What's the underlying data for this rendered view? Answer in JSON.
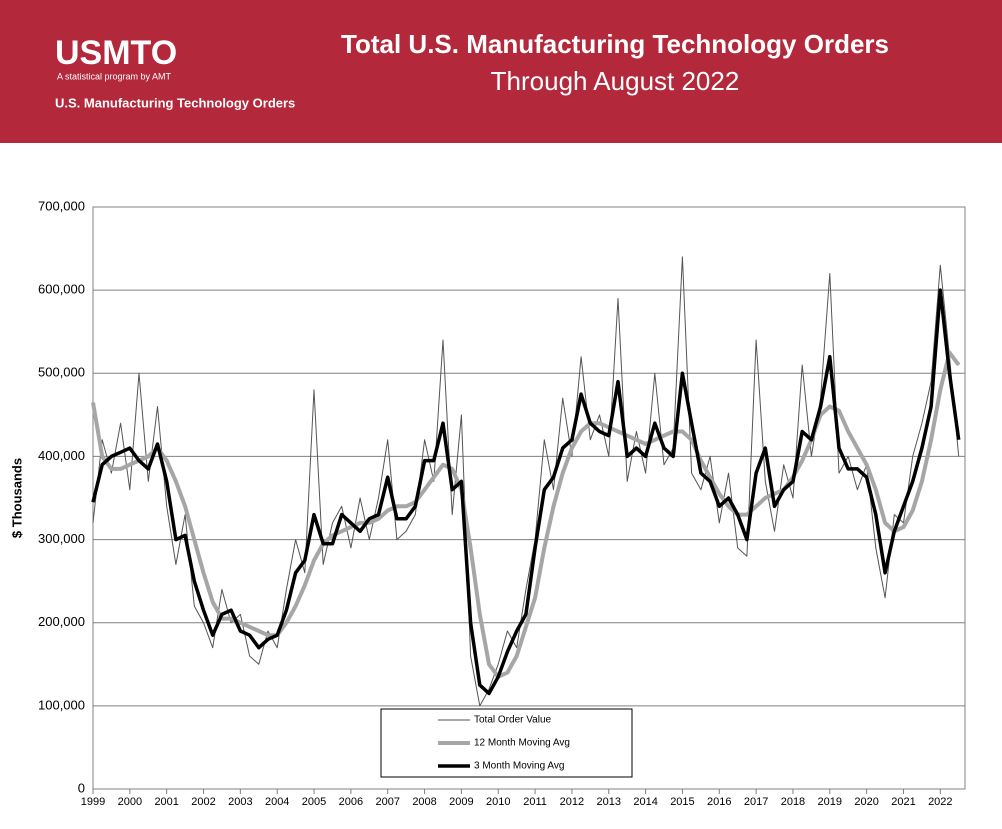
{
  "header": {
    "logo": "USMTO",
    "logo_tagline": "A statistical program by AMT",
    "program": "U.S. Manufacturing Technology Orders"
  },
  "chart_data": {
    "type": "line",
    "title": "Total U.S. Manufacturing Technology Orders",
    "subtitle": "Through August 2022",
    "y_label": "$ Thousands",
    "x": [
      1999,
      1999.25,
      1999.5,
      1999.75,
      2000,
      2000.25,
      2000.5,
      2000.75,
      2001,
      2001.25,
      2001.5,
      2001.75,
      2002,
      2002.25,
      2002.5,
      2002.75,
      2003,
      2003.25,
      2003.5,
      2003.75,
      2004,
      2004.25,
      2004.5,
      2004.75,
      2005,
      2005.25,
      2005.5,
      2005.75,
      2006,
      2006.25,
      2006.5,
      2006.75,
      2007,
      2007.25,
      2007.5,
      2007.75,
      2008,
      2008.25,
      2008.5,
      2008.75,
      2009,
      2009.25,
      2009.5,
      2009.75,
      2010,
      2010.25,
      2010.5,
      2010.75,
      2011,
      2011.25,
      2011.5,
      2011.75,
      2012,
      2012.25,
      2012.5,
      2012.75,
      2013,
      2013.25,
      2013.5,
      2013.75,
      2014,
      2014.25,
      2014.5,
      2014.75,
      2015,
      2015.25,
      2015.5,
      2015.75,
      2016,
      2016.25,
      2016.5,
      2016.75,
      2017,
      2017.25,
      2017.5,
      2017.75,
      2018,
      2018.25,
      2018.5,
      2018.75,
      2019,
      2019.25,
      2019.5,
      2019.75,
      2020,
      2020.25,
      2020.5,
      2020.75,
      2021,
      2021.25,
      2021.5,
      2021.75,
      2022,
      2022.25,
      2022.5
    ],
    "series": [
      {
        "name": "Total Order Value",
        "color": "#555555",
        "values": [
          320000,
          420000,
          380000,
          440000,
          360000,
          500000,
          370000,
          460000,
          340000,
          270000,
          330000,
          220000,
          200000,
          170000,
          240000,
          200000,
          210000,
          160000,
          150000,
          190000,
          170000,
          240000,
          300000,
          260000,
          480000,
          270000,
          320000,
          340000,
          290000,
          350000,
          300000,
          350000,
          420000,
          300000,
          310000,
          330000,
          420000,
          370000,
          540000,
          330000,
          450000,
          160000,
          100000,
          120000,
          150000,
          190000,
          170000,
          240000,
          300000,
          420000,
          360000,
          470000,
          400000,
          520000,
          420000,
          450000,
          400000,
          590000,
          370000,
          430000,
          380000,
          500000,
          390000,
          410000,
          640000,
          380000,
          360000,
          400000,
          320000,
          380000,
          290000,
          280000,
          540000,
          370000,
          310000,
          390000,
          350000,
          510000,
          400000,
          470000,
          620000,
          380000,
          400000,
          360000,
          390000,
          290000,
          230000,
          330000,
          320000,
          400000,
          440000,
          490000,
          630000,
          520000,
          400000
        ]
      },
      {
        "name": "12 Month Moving Avg",
        "color": "#a6a6a6",
        "values": [
          465000,
          400000,
          385000,
          385000,
          390000,
          395000,
          400000,
          410000,
          395000,
          370000,
          340000,
          300000,
          260000,
          225000,
          205000,
          205000,
          200000,
          195000,
          190000,
          185000,
          185000,
          200000,
          220000,
          245000,
          275000,
          295000,
          305000,
          310000,
          315000,
          320000,
          320000,
          325000,
          335000,
          340000,
          340000,
          345000,
          360000,
          375000,
          390000,
          385000,
          360000,
          290000,
          210000,
          150000,
          135000,
          140000,
          160000,
          195000,
          230000,
          290000,
          340000,
          380000,
          410000,
          430000,
          440000,
          440000,
          435000,
          430000,
          425000,
          420000,
          415000,
          420000,
          425000,
          430000,
          430000,
          420000,
          395000,
          375000,
          355000,
          340000,
          330000,
          330000,
          340000,
          350000,
          355000,
          360000,
          375000,
          395000,
          420000,
          450000,
          460000,
          455000,
          430000,
          410000,
          390000,
          360000,
          320000,
          310000,
          315000,
          335000,
          370000,
          420000,
          480000,
          525000,
          510000
        ]
      },
      {
        "name": "3 Month Moving Avg",
        "color": "#000000",
        "values": [
          345000,
          390000,
          400000,
          405000,
          410000,
          395000,
          385000,
          415000,
          370000,
          300000,
          305000,
          250000,
          215000,
          185000,
          210000,
          215000,
          190000,
          185000,
          170000,
          180000,
          185000,
          215000,
          260000,
          275000,
          330000,
          295000,
          295000,
          330000,
          320000,
          310000,
          325000,
          330000,
          375000,
          325000,
          325000,
          340000,
          395000,
          395000,
          440000,
          360000,
          370000,
          200000,
          125000,
          115000,
          135000,
          165000,
          190000,
          210000,
          290000,
          360000,
          375000,
          410000,
          420000,
          475000,
          440000,
          430000,
          425000,
          490000,
          400000,
          410000,
          400000,
          440000,
          410000,
          400000,
          500000,
          440000,
          380000,
          370000,
          340000,
          350000,
          330000,
          300000,
          380000,
          410000,
          340000,
          360000,
          370000,
          430000,
          420000,
          460000,
          520000,
          410000,
          385000,
          385000,
          375000,
          330000,
          260000,
          310000,
          340000,
          370000,
          410000,
          460000,
          600000,
          500000,
          420000
        ]
      }
    ],
    "xlim": [
      1999,
      2022.67
    ],
    "xticks": [
      1999,
      2000,
      2001,
      2002,
      2003,
      2004,
      2005,
      2006,
      2007,
      2008,
      2009,
      2010,
      2011,
      2012,
      2013,
      2014,
      2015,
      2016,
      2017,
      2018,
      2019,
      2020,
      2021,
      2022
    ],
    "ylim": [
      0,
      700000
    ],
    "yticks": [
      0,
      {
        "value": 100000,
        "label": "100,000"
      },
      {
        "value": 200000,
        "label": "200,000"
      },
      {
        "value": 300000,
        "label": "300,000"
      },
      {
        "value": 400000,
        "label": "400,000"
      },
      {
        "value": 500000,
        "label": "500,000"
      },
      {
        "value": 600000,
        "label": "600,000"
      },
      {
        "value": 700000,
        "label": "700,000"
      }
    ],
    "grid": true
  }
}
